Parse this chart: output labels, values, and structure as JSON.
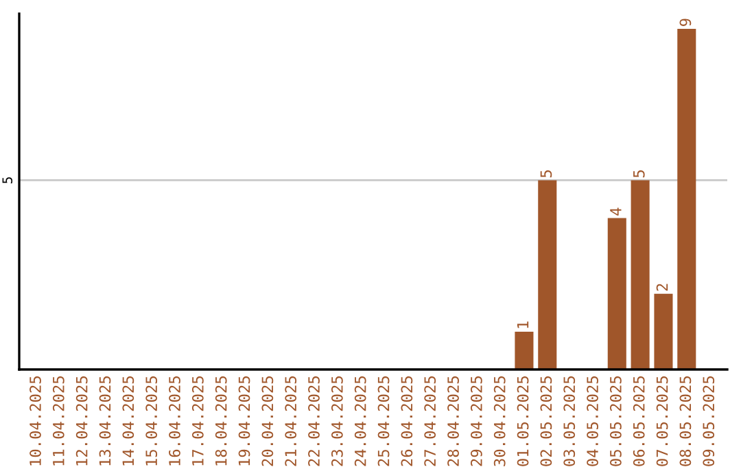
{
  "chart_data": {
    "type": "bar",
    "categories": [
      "10.04.2025",
      "11.04.2025",
      "12.04.2025",
      "13.04.2025",
      "14.04.2025",
      "15.04.2025",
      "16.04.2025",
      "17.04.2025",
      "18.04.2025",
      "19.04.2025",
      "20.04.2025",
      "21.04.2025",
      "22.04.2025",
      "23.04.2025",
      "24.04.2025",
      "25.04.2025",
      "26.04.2025",
      "27.04.2025",
      "28.04.2025",
      "29.04.2025",
      "30.04.2025",
      "01.05.2025",
      "02.05.2025",
      "03.05.2025",
      "04.05.2025",
      "05.05.2025",
      "06.05.2025",
      "07.05.2025",
      "08.05.2025",
      "09.05.2025"
    ],
    "values": [
      null,
      null,
      null,
      null,
      null,
      null,
      null,
      null,
      null,
      null,
      null,
      null,
      null,
      null,
      null,
      null,
      null,
      null,
      null,
      null,
      null,
      1,
      5,
      null,
      null,
      4,
      5,
      2,
      9,
      null
    ],
    "value_labels": [
      null,
      null,
      null,
      null,
      null,
      null,
      null,
      null,
      null,
      null,
      null,
      null,
      null,
      null,
      null,
      null,
      null,
      null,
      null,
      null,
      null,
      "1",
      "5",
      null,
      null,
      "4",
      "5",
      "2",
      "9",
      null
    ],
    "color": "#a0562a",
    "ylim": [
      0,
      9.4
    ],
    "ref_lines": [
      {
        "axis": "y",
        "value": 5,
        "label": "5",
        "color": "#c8c8c8"
      }
    ]
  }
}
